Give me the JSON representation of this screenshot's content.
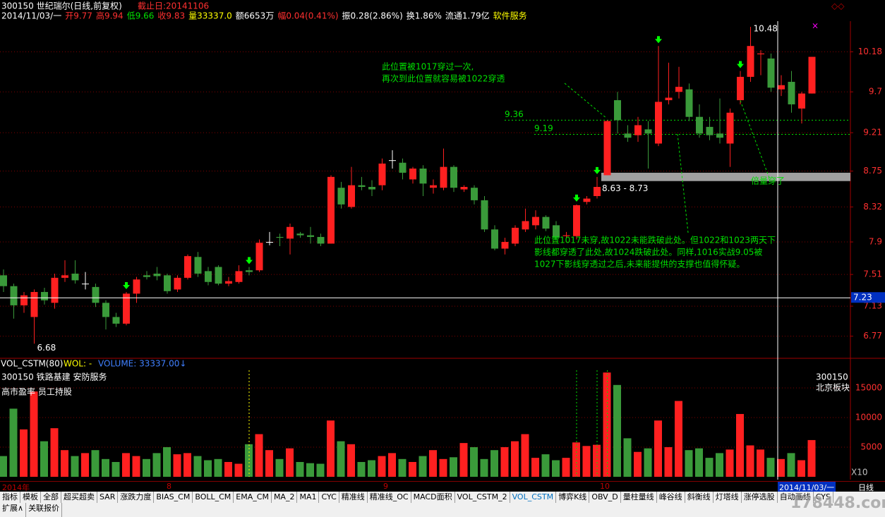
{
  "header": {
    "code_name": "300150 世纪瑞尔(日线,前复权)",
    "end_date": "截止日:20141106",
    "quote": [
      {
        "text": "2014/11/03/一",
        "color": "#ffffff"
      },
      {
        "text": "开9.77",
        "color": "#ff3030"
      },
      {
        "text": "高9.94",
        "color": "#ff3030"
      },
      {
        "text": "低9.66",
        "color": "#00e000"
      },
      {
        "text": "收9.83",
        "color": "#ff3030"
      },
      {
        "text": "量33337.0",
        "color": "#ffff00"
      },
      {
        "text": "额6653万",
        "color": "#ffffff"
      },
      {
        "text": "幅0.04(0.41%)",
        "color": "#ff3030"
      },
      {
        "text": "振0.28(2.86%)",
        "color": "#ffffff"
      },
      {
        "text": "换1.86%",
        "color": "#ffffff"
      },
      {
        "text": "流通1.79亿",
        "color": "#ffffff"
      },
      {
        "text": "软件服务",
        "color": "#ffff00"
      }
    ]
  },
  "chart_data": {
    "type": "candlestick",
    "open": [
      7.5,
      7.37,
      7.14,
      7.0,
      7.3,
      7.17,
      7.47,
      7.52,
      7.4,
      7.36,
      7.17,
      7.0,
      6.92,
      7.28,
      7.5,
      7.52,
      7.5,
      7.33,
      7.47,
      7.72,
      7.55,
      7.6,
      7.4,
      7.42,
      7.56,
      7.56,
      7.9,
      7.96,
      7.94,
      8.0,
      7.98,
      7.96,
      7.88,
      8.55,
      8.32,
      8.58,
      8.56,
      8.58,
      8.88,
      8.85,
      8.65,
      8.78,
      8.55,
      8.55,
      8.8,
      8.53,
      8.55,
      8.4,
      8.05,
      7.82,
      7.88,
      8.05,
      8.1,
      8.2,
      8.1,
      7.97,
      7.97,
      8.38,
      8.45,
      8.7,
      9.6,
      9.2,
      9.18,
      9.25,
      9.08,
      9.6,
      9.7,
      9.73,
      9.4,
      9.28,
      9.2,
      9.08,
      9.6,
      9.88,
      10.15,
      10.1,
      9.73,
      9.82,
      9.5,
      9.68
    ],
    "high": [
      7.57,
      7.4,
      7.3,
      7.33,
      7.35,
      7.52,
      7.68,
      7.68,
      7.54,
      7.4,
      7.2,
      7.05,
      7.3,
      7.48,
      7.55,
      7.6,
      7.52,
      7.5,
      7.75,
      7.78,
      7.6,
      7.62,
      7.48,
      7.62,
      7.6,
      7.93,
      8.02,
      8.0,
      8.12,
      8.02,
      8.08,
      8.0,
      8.7,
      8.62,
      8.8,
      8.68,
      8.64,
      8.9,
      9.0,
      8.9,
      8.8,
      8.82,
      8.65,
      9.02,
      8.82,
      8.58,
      8.58,
      8.45,
      8.1,
      7.95,
      8.1,
      8.3,
      8.28,
      8.22,
      8.15,
      8.02,
      8.35,
      8.45,
      8.68,
      9.36,
      9.7,
      9.3,
      9.4,
      9.35,
      10.25,
      10.05,
      10.0,
      9.8,
      9.55,
      9.4,
      9.62,
      9.5,
      9.95,
      10.48,
      10.2,
      10.16,
      9.9,
      9.95,
      9.7,
      10.12
    ],
    "low": [
      7.3,
      6.98,
      7.05,
      6.68,
      7.15,
      7.1,
      7.42,
      7.4,
      7.33,
      7.12,
      6.85,
      6.88,
      6.9,
      7.17,
      7.45,
      7.44,
      7.28,
      7.3,
      7.45,
      7.48,
      7.38,
      7.38,
      7.37,
      7.4,
      7.5,
      7.54,
      7.86,
      7.85,
      7.75,
      7.95,
      7.88,
      7.85,
      7.88,
      8.3,
      8.3,
      8.52,
      8.45,
      8.52,
      8.78,
      8.65,
      8.6,
      8.45,
      8.48,
      8.52,
      8.5,
      8.5,
      8.35,
      8.02,
      7.8,
      7.75,
      7.85,
      8.02,
      8.05,
      8.03,
      7.92,
      7.95,
      7.93,
      8.35,
      8.42,
      8.7,
      9.2,
      9.1,
      9.1,
      8.78,
      9.05,
      9.55,
      9.62,
      9.35,
      9.15,
      9.12,
      9.08,
      8.8,
      9.55,
      9.82,
      9.9,
      9.7,
      9.65,
      9.45,
      9.32,
      9.68
    ],
    "close": [
      7.37,
      7.14,
      7.26,
      7.3,
      7.2,
      7.47,
      7.5,
      7.44,
      7.4,
      7.17,
      7.0,
      6.92,
      7.28,
      7.45,
      7.48,
      7.49,
      7.31,
      7.47,
      7.73,
      7.52,
      7.42,
      7.4,
      7.43,
      7.55,
      7.54,
      7.89,
      7.9,
      7.95,
      8.08,
      7.98,
      7.96,
      7.88,
      8.68,
      8.35,
      8.58,
      8.56,
      8.53,
      8.84,
      8.88,
      8.73,
      8.78,
      8.6,
      8.58,
      8.8,
      8.55,
      8.56,
      8.4,
      8.05,
      7.82,
      7.9,
      8.07,
      8.15,
      8.2,
      8.06,
      7.95,
      7.98,
      8.34,
      8.42,
      8.56,
      9.35,
      9.36,
      9.15,
      9.3,
      9.2,
      9.58,
      9.63,
      9.76,
      9.4,
      9.2,
      9.18,
      9.15,
      9.45,
      9.88,
      10.25,
      10.16,
      9.75,
      9.78,
      9.55,
      9.68,
      10.12
    ],
    "volume": [
      3500,
      11500,
      8000,
      14400,
      6000,
      8200,
      4500,
      3500,
      4000,
      4500,
      3000,
      2500,
      4000,
      3500,
      3000,
      4000,
      5000,
      3800,
      4000,
      3500,
      2800,
      3000,
      2500,
      2200,
      5500,
      7200,
      4500,
      3000,
      4800,
      2500,
      2300,
      2200,
      9500,
      6000,
      5500,
      2500,
      2800,
      3500,
      4000,
      3000,
      2500,
      3500,
      4500,
      3000,
      3300,
      5700,
      5000,
      3000,
      4500,
      5000,
      6000,
      7200,
      3200,
      3800,
      2800,
      3200,
      5800,
      5200,
      5400,
      17600,
      15500,
      6500,
      4200,
      4800,
      9500,
      5000,
      12800,
      4500,
      4800,
      3200,
      4000,
      4600,
      10600,
      5300,
      4600,
      3200,
      3000,
      4000,
      2800,
      6200
    ],
    "up_color": "#ff2020",
    "down_color": "#3a9a3a",
    "ylim": [
      6.53,
      10.59
    ],
    "yticks": [
      10.18,
      9.7,
      9.21,
      8.75,
      8.32,
      7.9,
      7.51,
      7.13,
      6.77
    ],
    "grid": true,
    "vol_ylim": [
      0,
      18000
    ],
    "vol_ticks": [
      15000,
      10000,
      5000
    ],
    "last_price": 7.23,
    "levels": [
      9.36,
      9.19
    ],
    "band": {
      "low": 8.63,
      "high": 8.73,
      "label": "8.63 - 8.73"
    },
    "high_label": "10.48",
    "low_label": "6.68",
    "x_labels": [
      "2014年",
      "8",
      "9",
      "10"
    ],
    "annotations": [
      [
        "此位置被1017穿过一次,",
        "再次到此位置就容易被1022穿透"
      ],
      [
        "此位置1017未穿,故1022未能跌破此处。但1022和1023两天下",
        "影线都穿透了此处,故1024跌破此处。同样,1016实战9.05被",
        "1027下影线穿透过之后,未来能提供的支撑也值得怀疑。"
      ],
      [
        "倍量穿了"
      ]
    ],
    "vol_panel": {
      "name": "VOL_CSTM(80)",
      "wol": "WOL: -",
      "volume": "VOLUME: 33337.00↓",
      "tags1": "300150   铁路基建 安防服务",
      "tags2": "高市盈率 员工持股",
      "right1": "300150",
      "right2": "北京板块",
      "scale": "X10"
    }
  },
  "footer": {
    "date": "2014/11/03/一",
    "period": "日线",
    "tabs": [
      "指标",
      "模板",
      "全部",
      "超买超卖",
      "SAR",
      "涨跌力度",
      "BIAS_CM",
      "BOLL_CM",
      "EMA_CM",
      "MA_2",
      "MA1",
      "CYC",
      "精准线",
      "精准线_OC",
      "MACD面积",
      "VOL_CSTM_2",
      "VOL_CSTM",
      "博弈K线",
      "OBV_D",
      "量柱量线",
      "峰谷线",
      "斜衡线",
      "灯塔线",
      "涨停选股",
      "自动画线",
      "CYS"
    ],
    "tabs2": [
      "扩展∧",
      "关联报价"
    ],
    "watermark": "178448.com"
  }
}
